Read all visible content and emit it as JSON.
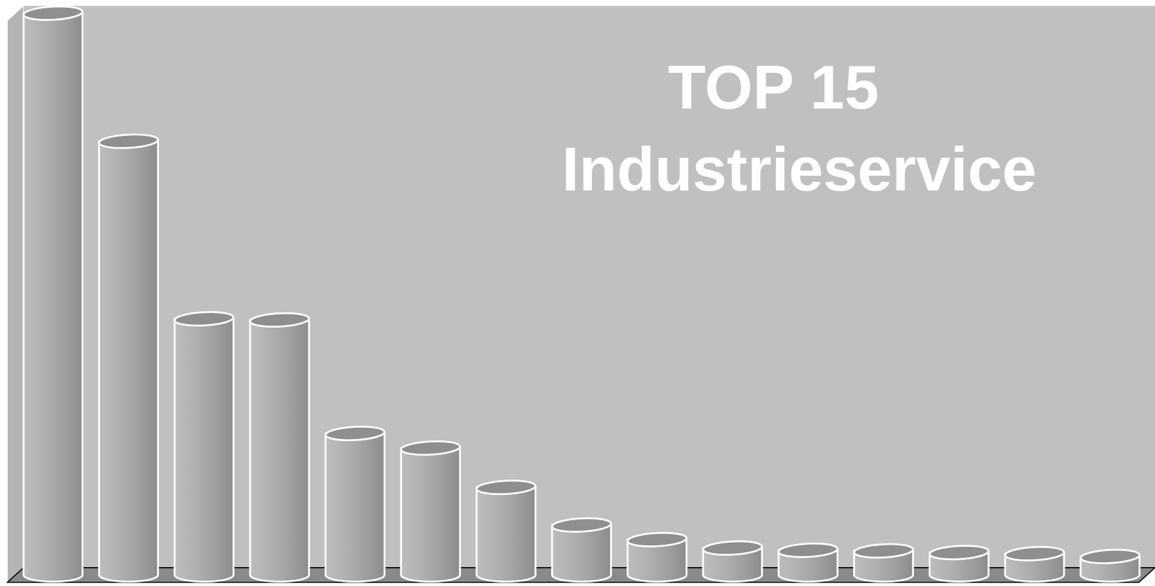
{
  "chart_data": {
    "type": "bar",
    "title": [
      "TOP 15",
      "Industrieservice"
    ],
    "categories": [
      null,
      null,
      null,
      null,
      null,
      null,
      null,
      null,
      null,
      null,
      null,
      null,
      null,
      null,
      null
    ],
    "values": [
      100,
      77.2,
      45.6,
      45.4,
      25.2,
      22.6,
      15.6,
      8.9,
      6.3,
      4.8,
      4.4,
      4.3,
      4.0,
      3.8,
      3.3
    ],
    "ylim": [
      0,
      100
    ],
    "color": "#a8a8a8"
  }
}
